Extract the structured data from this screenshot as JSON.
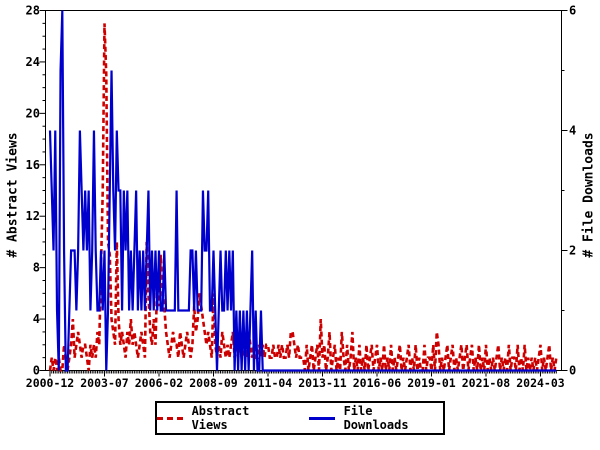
{
  "chart_data": {
    "type": "line",
    "title": "",
    "ylabel": "# Abstract Views",
    "y2label": "# File Downloads",
    "x_start_month": "2000-12",
    "x_interval": "monthly",
    "background": "#ffffff",
    "frame_color": "#000000",
    "grid": false,
    "legend_position": "bottom-center-boxed",
    "y_left_axis": {
      "min": 0,
      "max": 28,
      "major_ticks": [
        0,
        4,
        8,
        12,
        16,
        20,
        24,
        28
      ],
      "minor_step": 1
    },
    "y_right_axis": {
      "min": 0,
      "max": 6,
      "major_ticks": [
        0,
        2,
        4,
        6
      ],
      "minor_ticks": [
        1,
        3,
        5
      ]
    },
    "x_axis": {
      "tick_labels": [
        "2000-12",
        "2003-07",
        "2006-02",
        "2008-09",
        "2011-04",
        "2013-11",
        "2016-06",
        "2019-01",
        "2021-08",
        "2024-03"
      ],
      "tick_month_indices": [
        0,
        31,
        62,
        93,
        124,
        155,
        186,
        217,
        248,
        279
      ],
      "minor_tick_every_month": true
    },
    "series": [
      {
        "name": "Abstract Views",
        "axis": "left",
        "color": "#cd0000",
        "style": "dashed",
        "values": [
          0,
          1,
          0,
          1,
          0,
          1,
          0,
          0,
          2,
          1,
          0,
          1,
          2,
          4,
          1,
          2,
          3,
          2,
          1,
          2,
          2,
          1,
          0,
          2,
          1,
          2,
          1,
          3,
          2,
          8,
          14,
          27,
          23,
          10,
          9,
          4,
          3,
          2,
          10,
          4,
          2,
          3,
          2,
          1,
          3,
          2,
          4,
          2,
          3,
          2,
          1,
          2,
          3,
          2,
          1,
          10,
          6,
          3,
          2,
          4,
          2,
          7,
          5,
          9,
          6,
          5,
          3,
          2,
          1,
          2,
          3,
          2,
          2,
          1,
          3,
          2,
          1,
          2,
          3,
          2,
          1,
          2,
          5,
          3,
          4,
          6,
          5,
          4,
          3,
          2,
          3,
          2,
          1,
          6,
          2,
          1,
          2,
          1,
          3,
          2,
          1,
          2,
          1,
          2,
          3,
          1,
          2,
          1,
          2,
          1,
          1,
          2,
          1,
          3,
          2,
          1,
          2,
          1,
          1,
          2,
          1,
          2,
          1,
          2,
          2,
          1,
          1,
          2,
          1,
          1,
          2,
          1,
          2,
          1,
          1,
          2,
          1,
          3,
          3,
          2,
          1,
          2,
          1,
          1,
          1,
          0,
          2,
          0,
          1,
          2,
          0,
          1,
          2,
          0,
          4,
          1,
          2,
          0,
          1,
          3,
          0,
          1,
          2,
          0,
          1,
          0,
          3,
          1,
          0,
          2,
          0,
          1,
          3,
          0,
          1,
          0,
          2,
          0,
          1,
          0,
          2,
          0,
          1,
          2,
          0,
          1,
          2,
          0,
          1,
          0,
          2,
          0,
          1,
          0,
          2,
          0,
          1,
          0,
          1,
          2,
          0,
          1,
          0,
          1,
          2,
          0,
          1,
          0,
          2,
          0,
          1,
          0,
          0,
          2,
          0,
          1,
          1,
          0,
          2,
          0,
          3,
          2,
          0,
          1,
          0,
          1,
          2,
          0,
          1,
          2,
          0,
          1,
          0,
          1,
          2,
          0,
          1,
          2,
          0,
          1,
          2,
          0,
          1,
          0,
          2,
          0,
          1,
          0,
          2,
          0,
          1,
          0,
          1,
          0,
          1,
          2,
          0,
          1,
          0,
          1,
          0,
          2,
          0,
          1,
          1,
          0,
          2,
          0,
          1,
          0,
          2,
          0,
          1,
          0,
          1,
          0,
          1,
          0,
          1,
          2,
          0,
          1,
          0,
          1,
          2,
          0,
          1,
          0,
          1
        ]
      },
      {
        "name": "File Downloads",
        "axis": "right",
        "color": "#0000cd",
        "style": "solid",
        "values": [
          4,
          3,
          2,
          4,
          1,
          0,
          5,
          6,
          2,
          0,
          0,
          1,
          2,
          2,
          2,
          1,
          2,
          4,
          3,
          2,
          3,
          2,
          3,
          1,
          2,
          4,
          2,
          1,
          1,
          2,
          1,
          2,
          0,
          1,
          3,
          5,
          3,
          2,
          4,
          3,
          3,
          1,
          3,
          2,
          3,
          1,
          2,
          1,
          2,
          3,
          1,
          2,
          1,
          2,
          1,
          2,
          3,
          1,
          2,
          1,
          2,
          1,
          2,
          1,
          1,
          2,
          1,
          1,
          1,
          1,
          1,
          1,
          3,
          1,
          1,
          1,
          1,
          1,
          1,
          1,
          2,
          2,
          1,
          2,
          1,
          1,
          1,
          3,
          2,
          2,
          3,
          1,
          1,
          2,
          1,
          0,
          1,
          2,
          1,
          1,
          2,
          1,
          2,
          1,
          2,
          0,
          1,
          0,
          1,
          0,
          1,
          0,
          1,
          0,
          1,
          2,
          0,
          1,
          0,
          0,
          1,
          0,
          0,
          0,
          0,
          0,
          0,
          0,
          0,
          0,
          0,
          0,
          0,
          0,
          0,
          0,
          0,
          0,
          0,
          0,
          0,
          0,
          0,
          0,
          0,
          0,
          0,
          0,
          0,
          0,
          0,
          0,
          0,
          0,
          0,
          0,
          0,
          0,
          0,
          0,
          0,
          0,
          0,
          0,
          0,
          0,
          0,
          0,
          0,
          0,
          0,
          0,
          0,
          0,
          0,
          0,
          0,
          0,
          0,
          0,
          0,
          0,
          0,
          0,
          0,
          0,
          0,
          0,
          0,
          0,
          0,
          0,
          0,
          0,
          0,
          0,
          0,
          0,
          0,
          0,
          0,
          0,
          0,
          0,
          0,
          0,
          0,
          0,
          0,
          0,
          0,
          0,
          0,
          0,
          0,
          0,
          0,
          0,
          0,
          0,
          0,
          0,
          0,
          0,
          0,
          0,
          0,
          0,
          0,
          0,
          0,
          0,
          0,
          0,
          0,
          0,
          0,
          0,
          0,
          0,
          0,
          0,
          0,
          0,
          0,
          0,
          0,
          0,
          0,
          0,
          0,
          0,
          0,
          0,
          0,
          0,
          0,
          0,
          0,
          0,
          0,
          0,
          0,
          0,
          0,
          0,
          0,
          0,
          0,
          0,
          0,
          0,
          0,
          0,
          0,
          0,
          0,
          0,
          0,
          0,
          0,
          0,
          0,
          0,
          0,
          0,
          0,
          0,
          0
        ]
      }
    ]
  }
}
